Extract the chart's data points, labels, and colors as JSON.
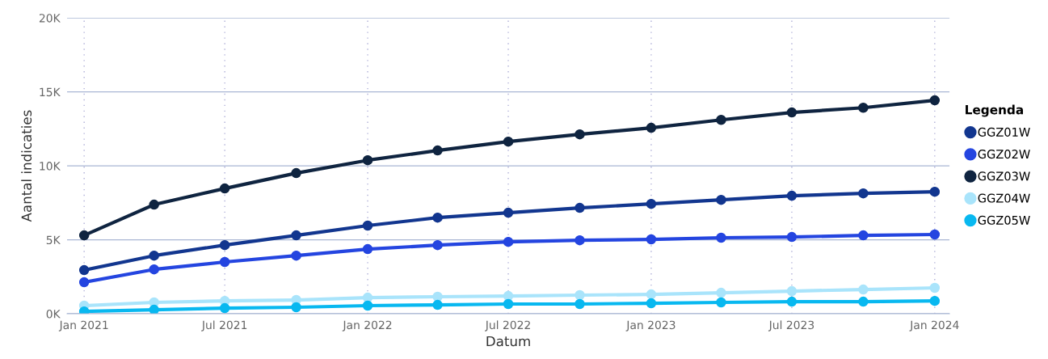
{
  "chart_data": {
    "type": "line",
    "xlabel": "Datum",
    "ylabel": "Aantal indicaties",
    "legend_title": "Legenda",
    "legend": "right",
    "grid": true,
    "marker": "circle",
    "line_style": "solid",
    "x": [
      "2021-01-01",
      "2021-04-01",
      "2021-07-01",
      "2021-10-01",
      "2022-01-01",
      "2022-04-01",
      "2022-07-01",
      "2022-10-01",
      "2023-01-01",
      "2023-04-01",
      "2023-07-01",
      "2023-10-01",
      "2024-01-01"
    ],
    "xlim": [
      "2020-12-10",
      "2024-01-20"
    ],
    "xticks": [
      {
        "value": "2021-01-01",
        "label": "Jan 2021"
      },
      {
        "value": "2021-07-01",
        "label": "Jul 2021"
      },
      {
        "value": "2022-01-01",
        "label": "Jan 2022"
      },
      {
        "value": "2022-07-01",
        "label": "Jul 2022"
      },
      {
        "value": "2023-01-01",
        "label": "Jan 2023"
      },
      {
        "value": "2023-07-01",
        "label": "Jul 2023"
      },
      {
        "value": "2024-01-01",
        "label": "Jan 2024"
      }
    ],
    "ylim": [
      0,
      20000
    ],
    "yticks": [
      {
        "value": 0,
        "label": "0K"
      },
      {
        "value": 5000,
        "label": "5K"
      },
      {
        "value": 10000,
        "label": "10K"
      },
      {
        "value": 15000,
        "label": "15K"
      },
      {
        "value": 20000,
        "label": "20K"
      }
    ],
    "series": [
      {
        "name": "GGZ01W",
        "color": "#12368f",
        "values": [
          2950,
          3930,
          4640,
          5300,
          5960,
          6500,
          6830,
          7160,
          7430,
          7700,
          7980,
          8140,
          8250
        ]
      },
      {
        "name": "GGZ02W",
        "color": "#2445e0",
        "values": [
          2130,
          3000,
          3500,
          3930,
          4370,
          4640,
          4860,
          4970,
          5030,
          5140,
          5190,
          5300,
          5360
        ]
      },
      {
        "name": "GGZ03W",
        "color": "#0f2440",
        "values": [
          5300,
          7380,
          8470,
          9510,
          10380,
          11040,
          11640,
          12130,
          12570,
          13110,
          13610,
          13930,
          14430
        ]
      },
      {
        "name": "GGZ04W",
        "color": "#a9e4fb",
        "values": [
          550,
          770,
          870,
          930,
          1090,
          1150,
          1200,
          1260,
          1310,
          1420,
          1530,
          1640,
          1750
        ]
      },
      {
        "name": "GGZ05W",
        "color": "#08b8f0",
        "values": [
          160,
          270,
          380,
          440,
          550,
          600,
          660,
          660,
          710,
          770,
          820,
          820,
          870
        ]
      }
    ]
  }
}
